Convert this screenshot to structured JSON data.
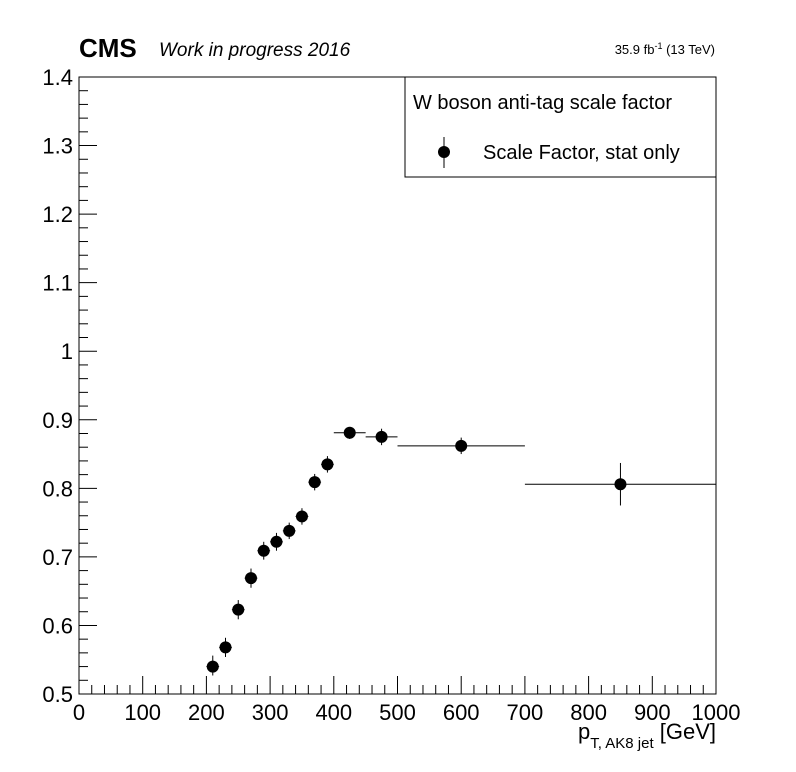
{
  "header": {
    "experiment": "CMS",
    "status": "Work in progress 2016",
    "lumi_value": "35.9 fb",
    "lumi_exp": "-1",
    "lumi_energy": " (13 TeV)"
  },
  "legend": {
    "header": "W boson anti-tag scale factor",
    "entry": "Scale Factor, stat only",
    "position": "top-right"
  },
  "chart_data": {
    "type": "scatter",
    "xlabel_main": "p",
    "xlabel_sub": "T, AK8 jet",
    "xlabel_unit": " [GeV]",
    "ylabel": "",
    "xlim": [
      0,
      1000
    ],
    "ylim": [
      0.5,
      1.4
    ],
    "grid": false,
    "x_ticks": [
      "0",
      "100",
      "200",
      "300",
      "400",
      "500",
      "600",
      "700",
      "800",
      "900",
      "1000"
    ],
    "y_ticks": [
      "0.5",
      "0.6",
      "0.7",
      "0.8",
      "0.9",
      "1",
      "1.1",
      "1.2",
      "1.3",
      "1.4"
    ],
    "series": [
      {
        "name": "Scale Factor, stat only",
        "color": "#000000",
        "points": [
          {
            "x": 210,
            "y": 0.54,
            "xlo": 200,
            "xhi": 220,
            "ylo": 0.527,
            "yhi": 0.556
          },
          {
            "x": 230,
            "y": 0.568,
            "xlo": 220,
            "xhi": 240,
            "ylo": 0.554,
            "yhi": 0.582
          },
          {
            "x": 250,
            "y": 0.623,
            "xlo": 240,
            "xhi": 260,
            "ylo": 0.609,
            "yhi": 0.637
          },
          {
            "x": 270,
            "y": 0.669,
            "xlo": 260,
            "xhi": 280,
            "ylo": 0.655,
            "yhi": 0.683
          },
          {
            "x": 290,
            "y": 0.709,
            "xlo": 280,
            "xhi": 300,
            "ylo": 0.696,
            "yhi": 0.722
          },
          {
            "x": 310,
            "y": 0.722,
            "xlo": 300,
            "xhi": 320,
            "ylo": 0.709,
            "yhi": 0.735
          },
          {
            "x": 330,
            "y": 0.738,
            "xlo": 320,
            "xhi": 340,
            "ylo": 0.726,
            "yhi": 0.75
          },
          {
            "x": 350,
            "y": 0.759,
            "xlo": 340,
            "xhi": 360,
            "ylo": 0.747,
            "yhi": 0.771
          },
          {
            "x": 370,
            "y": 0.809,
            "xlo": 360,
            "xhi": 380,
            "ylo": 0.797,
            "yhi": 0.821
          },
          {
            "x": 390,
            "y": 0.835,
            "xlo": 380,
            "xhi": 400,
            "ylo": 0.823,
            "yhi": 0.847
          },
          {
            "x": 425,
            "y": 0.881,
            "xlo": 400,
            "xhi": 450,
            "ylo": 0.872,
            "yhi": 0.889
          },
          {
            "x": 475,
            "y": 0.875,
            "xlo": 450,
            "xhi": 500,
            "ylo": 0.863,
            "yhi": 0.887
          },
          {
            "x": 600,
            "y": 0.862,
            "xlo": 500,
            "xhi": 700,
            "ylo": 0.85,
            "yhi": 0.874
          },
          {
            "x": 850,
            "y": 0.806,
            "xlo": 700,
            "xhi": 1000,
            "ylo": 0.775,
            "yhi": 0.837
          }
        ]
      }
    ]
  }
}
